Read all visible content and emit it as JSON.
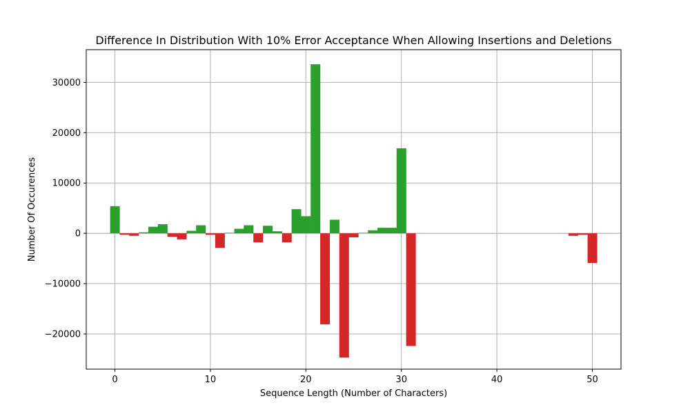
{
  "chart_data": {
    "type": "bar",
    "title": "Difference In Distribution With 10% Error Acceptance When Allowing Insertions and Deletions",
    "xlabel": "Sequence Length (Number of Characters)",
    "ylabel": "Number Of Occurences",
    "xlim": [
      -3,
      53
    ],
    "ylim": [
      -27000,
      36500
    ],
    "xticks": [
      0,
      10,
      20,
      30,
      40,
      50
    ],
    "yticks": [
      -20000,
      -10000,
      0,
      10000,
      20000,
      30000
    ],
    "xtick_labels": [
      "0",
      "10",
      "20",
      "30",
      "40",
      "50"
    ],
    "ytick_labels": [
      "−20000",
      "−10000",
      "0",
      "10000",
      "20000",
      "30000"
    ],
    "grid": true,
    "positive_color": "#2ca02c",
    "negative_color": "#d62728",
    "x": [
      0,
      1,
      2,
      3,
      4,
      5,
      6,
      7,
      8,
      9,
      10,
      11,
      12,
      13,
      14,
      15,
      16,
      17,
      18,
      19,
      20,
      21,
      22,
      23,
      24,
      25,
      26,
      27,
      28,
      29,
      30,
      31,
      32,
      33,
      34,
      35,
      36,
      37,
      38,
      39,
      40,
      41,
      42,
      43,
      44,
      45,
      46,
      47,
      48,
      49,
      50
    ],
    "values": [
      5400,
      -300,
      -500,
      200,
      1300,
      1800,
      -700,
      -1200,
      500,
      1600,
      -300,
      -2900,
      100,
      900,
      1600,
      -1800,
      1500,
      400,
      -1800,
      4800,
      3400,
      33600,
      -18100,
      2700,
      -24700,
      -800,
      100,
      600,
      1100,
      1100,
      16900,
      -22400,
      0,
      0,
      0,
      0,
      0,
      0,
      0,
      0,
      0,
      0,
      0,
      0,
      0,
      0,
      0,
      0,
      -500,
      -300,
      -5900
    ]
  }
}
